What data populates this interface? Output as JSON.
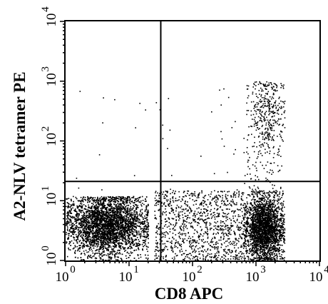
{
  "chart_data": {
    "type": "scatter",
    "xlabel": "CD8 APC",
    "ylabel": "A2-NLV tetramer PE",
    "xscale": "log",
    "yscale": "log",
    "xlim": [
      1,
      10000
    ],
    "ylim": [
      1,
      10000
    ],
    "grid": false,
    "x_ticks": [
      {
        "base": "10",
        "exp": "0"
      },
      {
        "base": "10",
        "exp": "1"
      },
      {
        "base": "10",
        "exp": "2"
      },
      {
        "base": "10",
        "exp": "3"
      },
      {
        "base": "10",
        "exp": "4"
      }
    ],
    "y_ticks": [
      {
        "base": "10",
        "exp": "0"
      },
      {
        "base": "10",
        "exp": "1"
      },
      {
        "base": "10",
        "exp": "2"
      },
      {
        "base": "10",
        "exp": "3"
      },
      {
        "base": "10",
        "exp": "4"
      }
    ],
    "quadrant_gates": {
      "x": 31.6,
      "y": 21
    },
    "populations": [
      {
        "label": "CD8-negative, tetramer-negative",
        "x_range": [
          1,
          20
        ],
        "y_range": [
          1,
          12
        ],
        "x_center": 4.5,
        "y_center": 4,
        "count": 4500,
        "spread": "dense"
      },
      {
        "label": "CD8 low/intermediate, tetramer-negative",
        "x_range": [
          25,
          600
        ],
        "y_range": [
          1,
          15
        ],
        "x_center": 120,
        "y_center": 3.5,
        "count": 1100,
        "spread": "sparse"
      },
      {
        "label": "CD8-positive, tetramer-negative",
        "x_range": [
          600,
          2800
        ],
        "y_range": [
          1,
          15
        ],
        "x_center": 1300,
        "y_center": 3.5,
        "count": 2600,
        "spread": "dense"
      },
      {
        "label": "CD8-positive, tetramer-positive",
        "x_range": [
          700,
          2800
        ],
        "y_range": [
          40,
          1000
        ],
        "x_center": 1500,
        "y_center": 300,
        "count": 380,
        "spread": "cluster"
      },
      {
        "label": "tetramer-positive tail",
        "x_range": [
          600,
          2500
        ],
        "y_range": [
          12,
          150
        ],
        "x_center": 1300,
        "y_center": 50,
        "count": 90,
        "spread": "sparse"
      },
      {
        "label": "scattered events",
        "x_range": [
          1.3,
          3000
        ],
        "y_range": [
          15,
          900
        ],
        "x_center": 100,
        "y_center": 60,
        "count": 45,
        "spread": "scatter"
      }
    ]
  }
}
